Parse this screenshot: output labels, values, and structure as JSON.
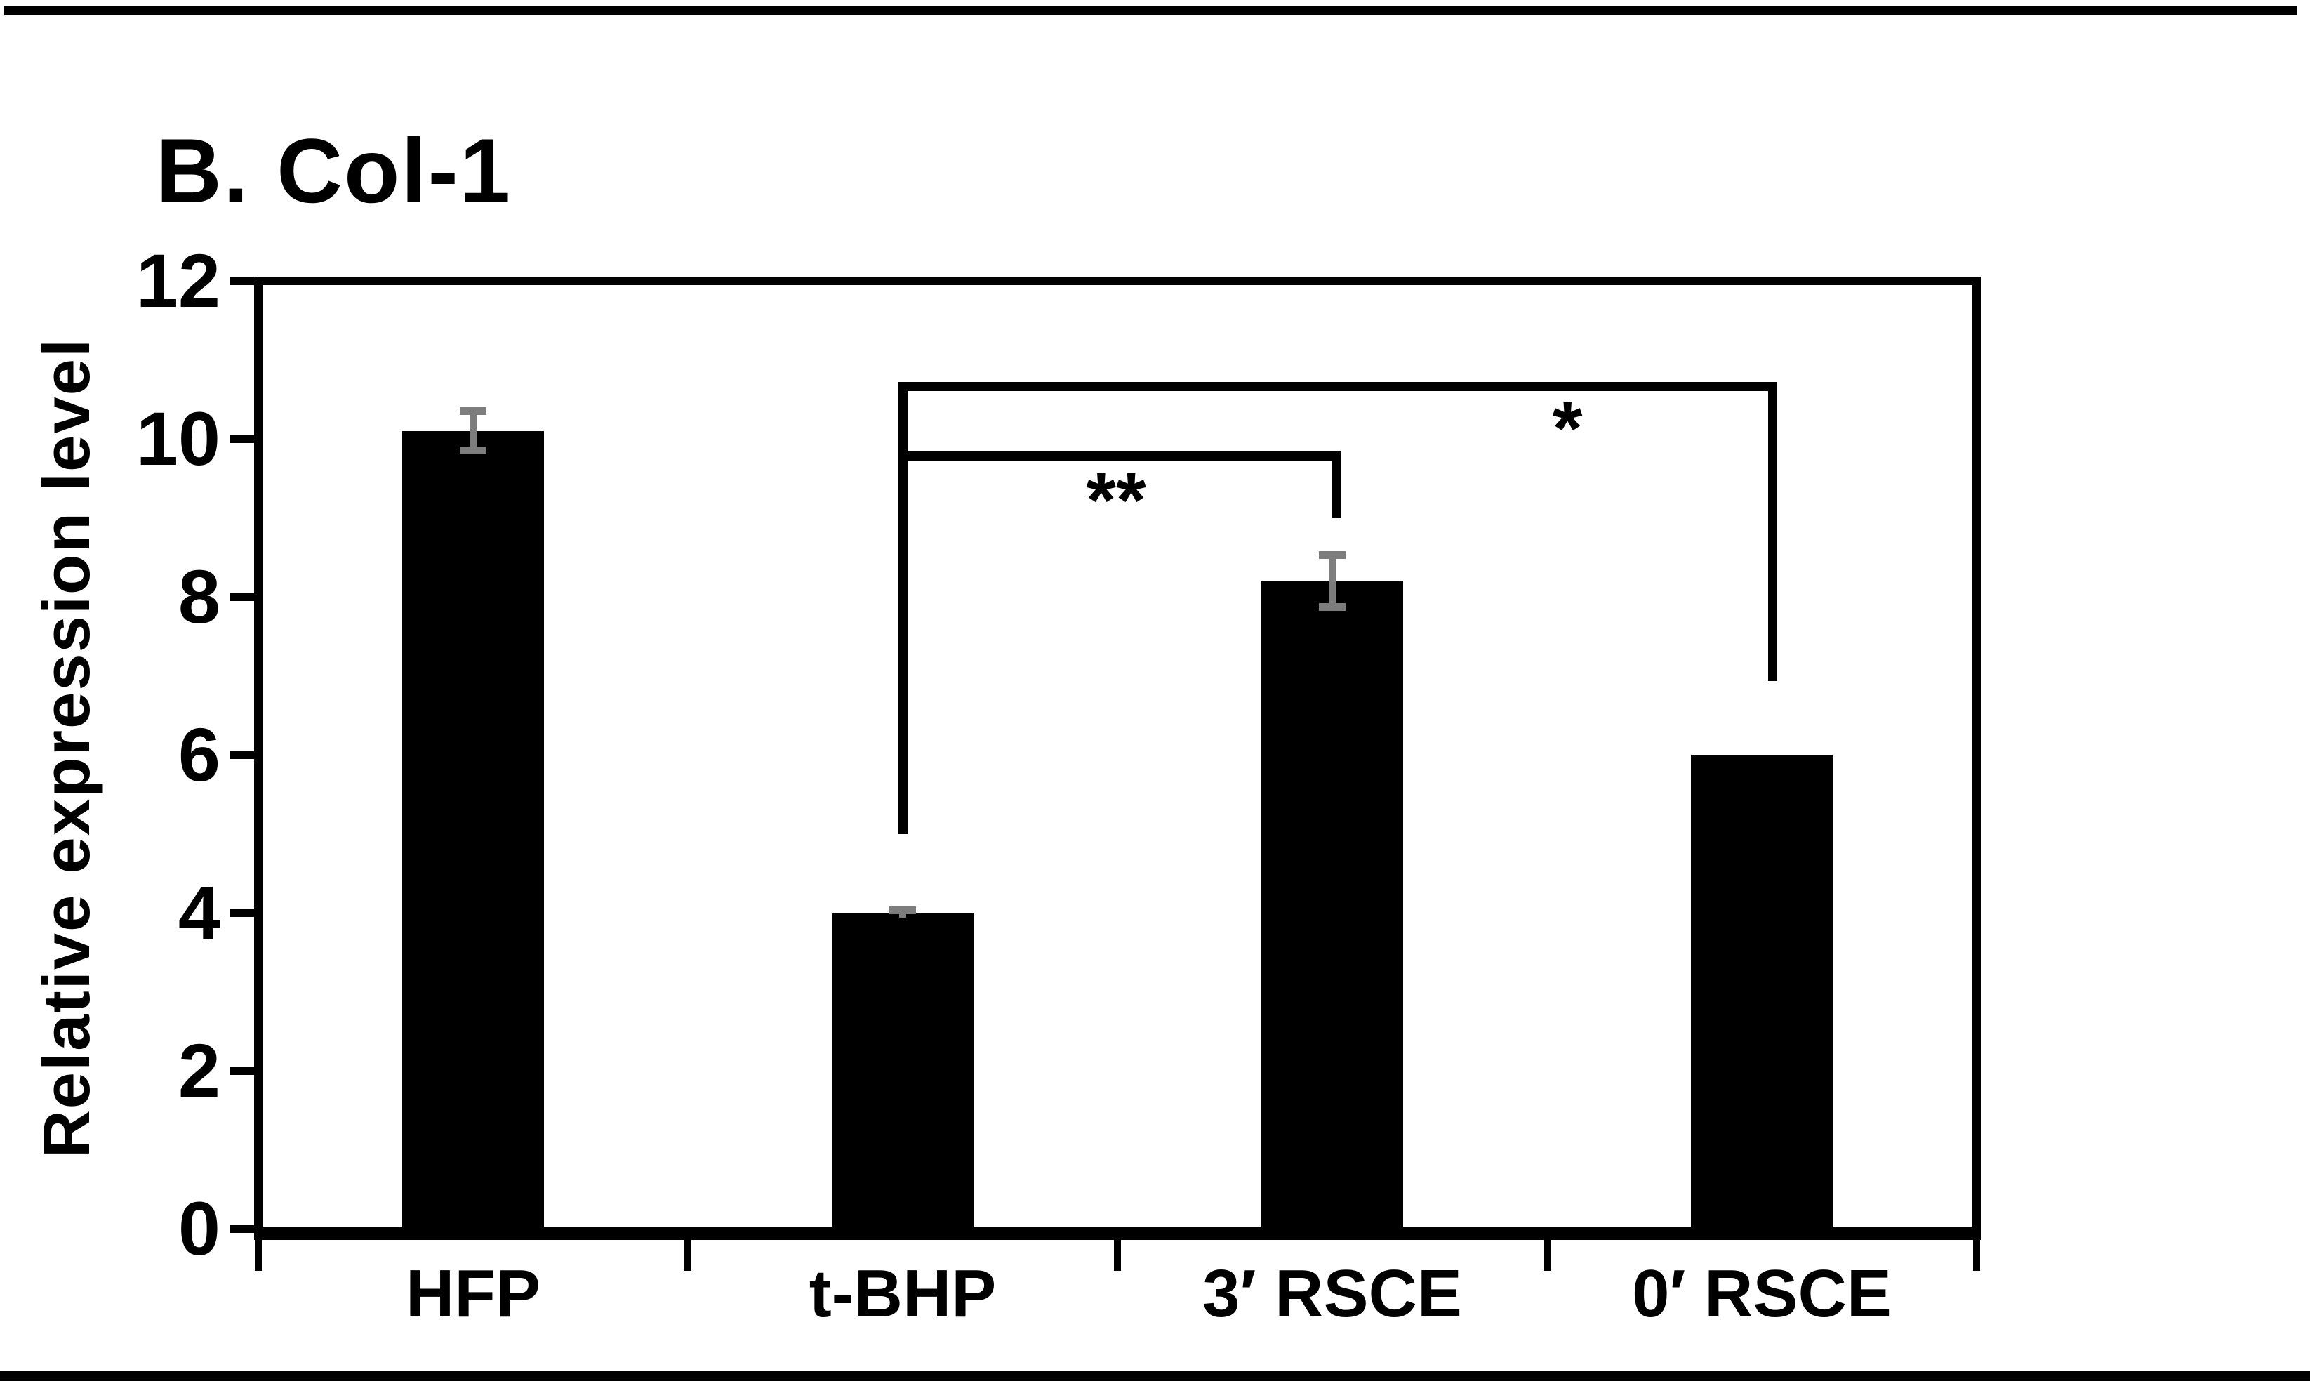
{
  "chart_data": {
    "type": "bar",
    "title": "B. Col-1",
    "ylabel": "Relative expression level",
    "xlabel": "",
    "ylim": [
      0,
      12
    ],
    "yticks": [
      0,
      2,
      4,
      6,
      8,
      10,
      12
    ],
    "categories": [
      "HFP",
      "t-BHP",
      "3′ RSCE",
      "0′ RSCE"
    ],
    "values": [
      10.1,
      4.0,
      8.2,
      6.0
    ],
    "error_bars": [
      0.28,
      0.06,
      0.36,
      null
    ],
    "bar_color": "#000000",
    "error_bar_color": "#7d7d7d",
    "grid": false,
    "legend": null,
    "legend_position": "none",
    "significance_brackets": [
      {
        "between": [
          "t-BHP",
          "3′ RSCE"
        ],
        "label": "**"
      },
      {
        "between": [
          "t-BHP",
          "0′ RSCE"
        ],
        "label": "*"
      }
    ]
  }
}
